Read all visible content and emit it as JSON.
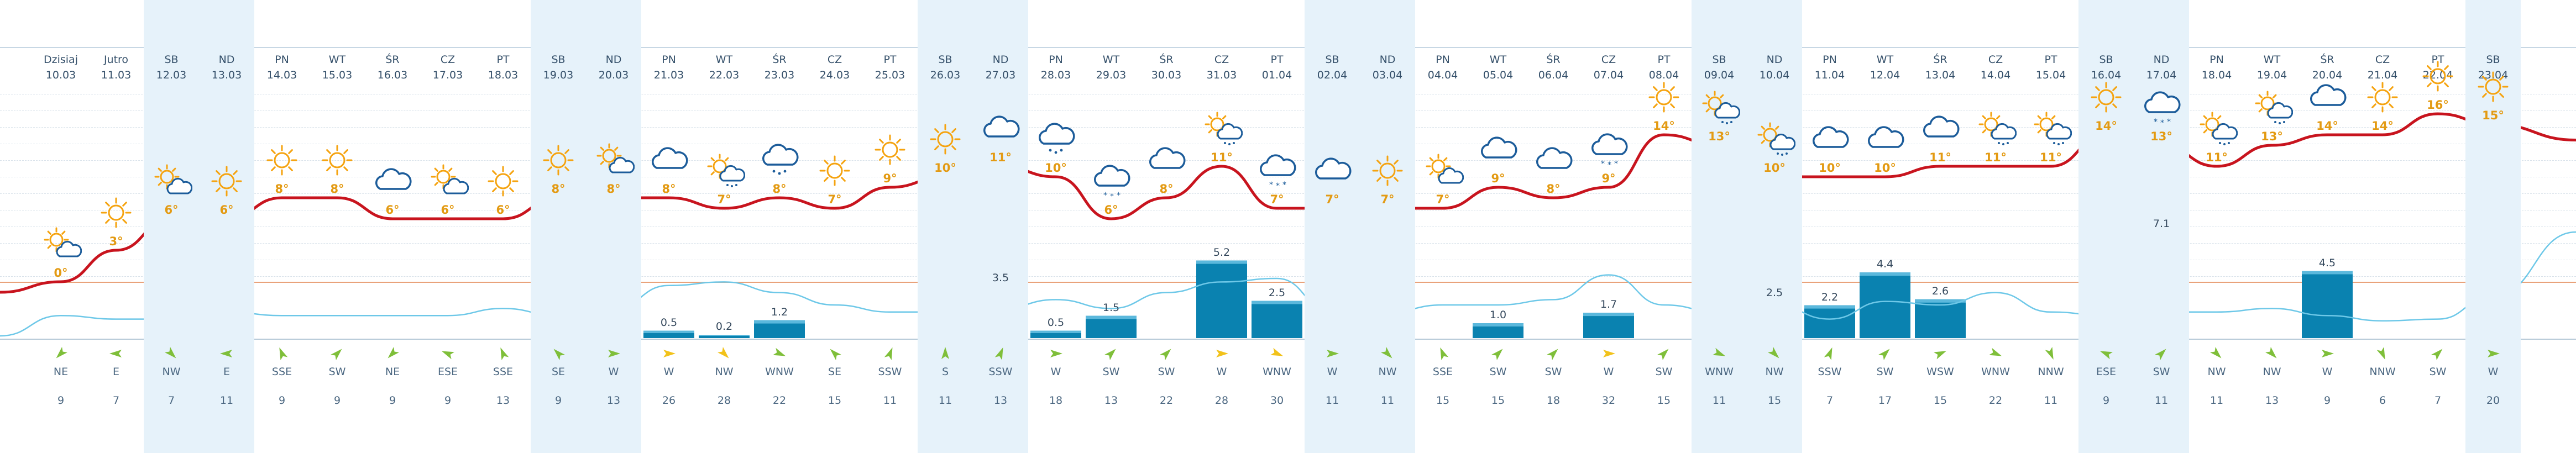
{
  "days": [
    {
      "name": "Dzisiaj",
      "date": "10.03",
      "we": false,
      "icon": "sun-cloud-icon",
      "temp": "0°",
      "precip": "",
      "wind_dir": "NE",
      "wind_speed": "9",
      "wind_deg": 225
    },
    {
      "name": "Jutro",
      "date": "11.03",
      "we": false,
      "icon": "sun-icon",
      "temp": "3°",
      "precip": "",
      "wind_dir": "E",
      "wind_speed": "7",
      "wind_deg": 270
    },
    {
      "name": "SB",
      "date": "12.03",
      "we": true,
      "icon": "sun-cloud-icon",
      "temp": "6°",
      "precip": "",
      "wind_dir": "NW",
      "wind_speed": "7",
      "wind_deg": 135
    },
    {
      "name": "ND",
      "date": "13.03",
      "we": true,
      "icon": "sun-icon",
      "temp": "6°",
      "precip": "",
      "wind_dir": "E",
      "wind_speed": "11",
      "wind_deg": 270
    },
    {
      "name": "PN",
      "date": "14.03",
      "we": false,
      "icon": "sun-icon",
      "temp": "8°",
      "precip": "",
      "wind_dir": "SSE",
      "wind_speed": "9",
      "wind_deg": 337
    },
    {
      "name": "WT",
      "date": "15.03",
      "we": false,
      "icon": "sun-icon",
      "temp": "8°",
      "precip": "",
      "wind_dir": "SW",
      "wind_speed": "9",
      "wind_deg": 45
    },
    {
      "name": "ŚR",
      "date": "16.03",
      "we": false,
      "icon": "cloud-icon",
      "temp": "6°",
      "precip": "",
      "wind_dir": "NE",
      "wind_speed": "9",
      "wind_deg": 225
    },
    {
      "name": "CZ",
      "date": "17.03",
      "we": false,
      "icon": "sun-cloud-icon",
      "temp": "6°",
      "precip": "",
      "wind_dir": "ESE",
      "wind_speed": "9",
      "wind_deg": 292
    },
    {
      "name": "PT",
      "date": "18.03",
      "we": false,
      "icon": "sun-icon",
      "temp": "6°",
      "precip": "",
      "wind_dir": "SSE",
      "wind_speed": "13",
      "wind_deg": 337
    },
    {
      "name": "SB",
      "date": "19.03",
      "we": true,
      "icon": "sun-icon",
      "temp": "8°",
      "precip": "",
      "wind_dir": "SE",
      "wind_speed": "9",
      "wind_deg": 315
    },
    {
      "name": "ND",
      "date": "20.03",
      "we": true,
      "icon": "sun-cloud-icon",
      "temp": "8°",
      "precip": "",
      "wind_dir": "W",
      "wind_speed": "13",
      "wind_deg": 90
    },
    {
      "name": "PN",
      "date": "21.03",
      "we": false,
      "icon": "cloud-icon",
      "temp": "8°",
      "precip": "0.5",
      "wind_dir": "W",
      "wind_speed": "26",
      "wind_deg": 90
    },
    {
      "name": "WT",
      "date": "22.03",
      "we": false,
      "icon": "sun-rain-icon",
      "temp": "7°",
      "precip": "0.2",
      "wind_dir": "NW",
      "wind_speed": "28",
      "wind_deg": 135
    },
    {
      "name": "ŚR",
      "date": "23.03",
      "we": false,
      "icon": "rain-cloud-icon",
      "temp": "8°",
      "precip": "1.2",
      "wind_dir": "WNW",
      "wind_speed": "22",
      "wind_deg": 112
    },
    {
      "name": "CZ",
      "date": "24.03",
      "we": false,
      "icon": "sun-icon",
      "temp": "7°",
      "precip": "",
      "wind_dir": "SE",
      "wind_speed": "15",
      "wind_deg": 315
    },
    {
      "name": "PT",
      "date": "25.03",
      "we": false,
      "icon": "sun-icon",
      "temp": "9°",
      "precip": "",
      "wind_dir": "SSW",
      "wind_speed": "11",
      "wind_deg": 22
    },
    {
      "name": "SB",
      "date": "26.03",
      "we": true,
      "icon": "sun-icon",
      "temp": "10°",
      "precip": "",
      "wind_dir": "S",
      "wind_speed": "11",
      "wind_deg": 0
    },
    {
      "name": "ND",
      "date": "27.03",
      "we": true,
      "icon": "cloud-icon",
      "temp": "11°",
      "precip": "3.5",
      "wind_dir": "SSW",
      "wind_speed": "13",
      "wind_deg": 22
    },
    {
      "name": "PN",
      "date": "28.03",
      "we": false,
      "icon": "rain-cloud-icon",
      "temp": "10°",
      "precip": "0.5",
      "wind_dir": "W",
      "wind_speed": "18",
      "wind_deg": 90
    },
    {
      "name": "WT",
      "date": "29.03",
      "we": false,
      "icon": "snow-cloud-icon",
      "temp": "6°",
      "precip": "1.5",
      "wind_dir": "SW",
      "wind_speed": "13",
      "wind_deg": 45
    },
    {
      "name": "ŚR",
      "date": "30.03",
      "we": false,
      "icon": "cloud-icon",
      "temp": "8°",
      "precip": "",
      "wind_dir": "SW",
      "wind_speed": "22",
      "wind_deg": 45
    },
    {
      "name": "CZ",
      "date": "31.03",
      "we": false,
      "icon": "sun-rain-icon",
      "temp": "11°",
      "precip": "5.2",
      "wind_dir": "W",
      "wind_speed": "28",
      "wind_deg": 90
    },
    {
      "name": "PT",
      "date": "01.04",
      "we": false,
      "icon": "snow-cloud-icon",
      "temp": "7°",
      "precip": "2.5",
      "wind_dir": "WNW",
      "wind_speed": "30",
      "wind_deg": 112
    },
    {
      "name": "SB",
      "date": "02.04",
      "we": true,
      "icon": "cloud-icon",
      "temp": "7°",
      "precip": "",
      "wind_dir": "W",
      "wind_speed": "11",
      "wind_deg": 90
    },
    {
      "name": "ND",
      "date": "03.04",
      "we": true,
      "icon": "sun-icon",
      "temp": "7°",
      "precip": "",
      "wind_dir": "NW",
      "wind_speed": "11",
      "wind_deg": 135
    },
    {
      "name": "PN",
      "date": "04.04",
      "we": false,
      "icon": "sun-cloud-icon",
      "temp": "7°",
      "precip": "",
      "wind_dir": "SSE",
      "wind_speed": "15",
      "wind_deg": 337
    },
    {
      "name": "WT",
      "date": "05.04",
      "we": false,
      "icon": "cloud-icon",
      "temp": "9°",
      "precip": "1.0",
      "wind_dir": "SW",
      "wind_speed": "15",
      "wind_deg": 45
    },
    {
      "name": "ŚR",
      "date": "06.04",
      "we": false,
      "icon": "cloud-icon",
      "temp": "8°",
      "precip": "",
      "wind_dir": "SW",
      "wind_speed": "18",
      "wind_deg": 45
    },
    {
      "name": "CZ",
      "date": "07.04",
      "we": false,
      "icon": "snow-cloud-icon",
      "temp": "9°",
      "precip": "1.7",
      "wind_dir": "W",
      "wind_speed": "32",
      "wind_deg": 90
    },
    {
      "name": "PT",
      "date": "08.04",
      "we": false,
      "icon": "sun-icon",
      "temp": "14°",
      "precip": "",
      "wind_dir": "SW",
      "wind_speed": "15",
      "wind_deg": 45
    },
    {
      "name": "SB",
      "date": "09.04",
      "we": true,
      "icon": "sun-rain-icon",
      "temp": "13°",
      "precip": "",
      "wind_dir": "WNW",
      "wind_speed": "11",
      "wind_deg": 112
    },
    {
      "name": "ND",
      "date": "10.04",
      "we": true,
      "icon": "sun-rain-icon",
      "temp": "10°",
      "precip": "2.5",
      "wind_dir": "NW",
      "wind_speed": "15",
      "wind_deg": 135
    },
    {
      "name": "PN",
      "date": "11.04",
      "we": false,
      "icon": "cloud-icon",
      "temp": "10°",
      "precip": "2.2",
      "wind_dir": "SSW",
      "wind_speed": "7",
      "wind_deg": 22
    },
    {
      "name": "WT",
      "date": "12.04",
      "we": false,
      "icon": "cloud-icon",
      "temp": "10°",
      "precip": "4.4",
      "wind_dir": "SW",
      "wind_speed": "17",
      "wind_deg": 45
    },
    {
      "name": "ŚR",
      "date": "13.04",
      "we": false,
      "icon": "cloud-icon",
      "temp": "11°",
      "precip": "2.6",
      "wind_dir": "WSW",
      "wind_speed": "15",
      "wind_deg": 67
    },
    {
      "name": "CZ",
      "date": "14.04",
      "we": false,
      "icon": "sun-rain-icon",
      "temp": "11°",
      "precip": "",
      "wind_dir": "WNW",
      "wind_speed": "22",
      "wind_deg": 112
    },
    {
      "name": "PT",
      "date": "15.04",
      "we": false,
      "icon": "sun-rain-icon",
      "temp": "11°",
      "precip": "",
      "wind_dir": "NNW",
      "wind_speed": "11",
      "wind_deg": 157
    },
    {
      "name": "SB",
      "date": "16.04",
      "we": true,
      "icon": "sun-icon",
      "temp": "14°",
      "precip": "",
      "wind_dir": "ESE",
      "wind_speed": "9",
      "wind_deg": 292
    },
    {
      "name": "ND",
      "date": "17.04",
      "we": true,
      "icon": "snow-cloud-icon",
      "temp": "13°",
      "precip": "7.1",
      "wind_dir": "SW",
      "wind_speed": "11",
      "wind_deg": 45
    },
    {
      "name": "PN",
      "date": "18.04",
      "we": false,
      "icon": "sun-rain-icon",
      "temp": "11°",
      "precip": "",
      "wind_dir": "NW",
      "wind_speed": "11",
      "wind_deg": 135
    },
    {
      "name": "WT",
      "date": "19.04",
      "we": false,
      "icon": "sun-rain-icon",
      "temp": "13°",
      "precip": "",
      "wind_dir": "NW",
      "wind_speed": "13",
      "wind_deg": 135
    },
    {
      "name": "ŚR",
      "date": "20.04",
      "we": false,
      "icon": "cloud-icon",
      "temp": "14°",
      "precip": "4.5",
      "wind_dir": "W",
      "wind_speed": "9",
      "wind_deg": 90
    },
    {
      "name": "CZ",
      "date": "21.04",
      "we": false,
      "icon": "sun-icon",
      "temp": "14°",
      "precip": "",
      "wind_dir": "NNW",
      "wind_speed": "6",
      "wind_deg": 157
    },
    {
      "name": "PT",
      "date": "22.04",
      "we": false,
      "icon": "sun-icon",
      "temp": "16°",
      "precip": "",
      "wind_dir": "SW",
      "wind_speed": "7",
      "wind_deg": 45
    },
    {
      "name": "SB",
      "date": "23.04",
      "we": true,
      "icon": "sun-icon",
      "temp": "15°",
      "precip": "",
      "wind_dir": "W",
      "wind_speed": "20",
      "wind_deg": 90
    }
  ],
  "colors": {
    "temp_line": "#c8141e",
    "second_line": "#6ec8e8",
    "precip_bar": "#0a82b0",
    "precip_bar_light": "#5bb8dc",
    "weekend_bg": "#e6f2fa",
    "sun": "#f5a30f",
    "cloud": "#1c5c9a",
    "arrow_green": "#7fbf3a",
    "arrow_yellow": "#f2c21a",
    "zero_line": "#e9a27a",
    "temp_text": "#e39a12"
  }
}
